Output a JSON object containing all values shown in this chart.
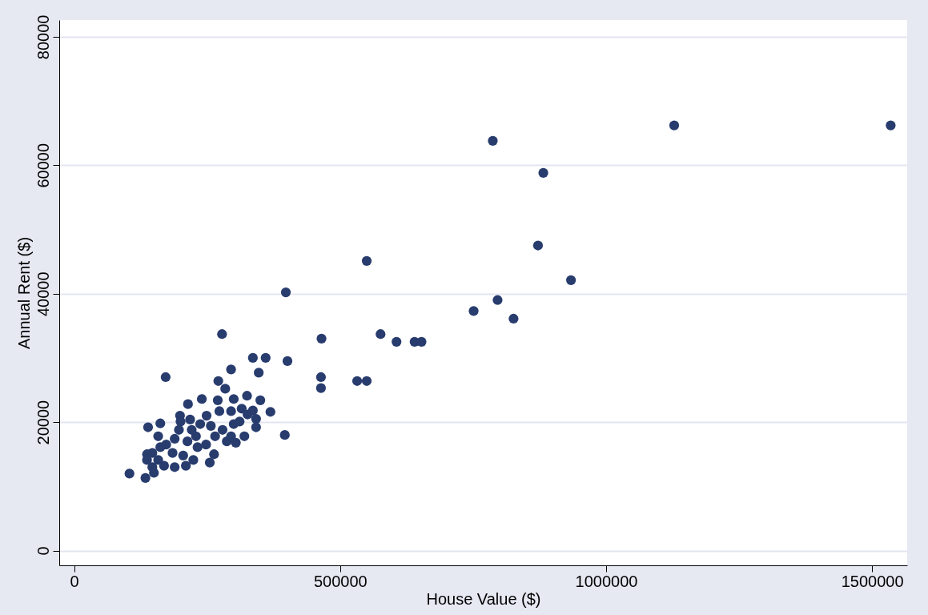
{
  "chart_data": {
    "type": "scatter",
    "xlabel": "House Value ($)",
    "ylabel": "Annual Rent ($)",
    "xlim": [
      -28000,
      1566000
    ],
    "ylim": [
      -2300,
      82600
    ],
    "xticks": [
      0,
      500000,
      1000000,
      1500000
    ],
    "yticks": [
      0,
      20000,
      40000,
      60000,
      80000
    ],
    "grid": "y",
    "marker": "circle",
    "series": [
      {
        "color": "#283c6e",
        "x": [
          104000,
          134000,
          150000,
          172000,
          278000,
          398000,
          401000,
          396000,
          336000,
          360000,
          347000,
          295000,
          271000,
          284000,
          369000,
          465000,
          464000,
          464000,
          532000,
          550000,
          550000,
          576000,
          606000,
          640000,
          653000,
          751000,
          787000,
          796000,
          826000,
          872000,
          882000,
          934000,
          1128000,
          1535000,
          214000,
          240000,
          270000,
          300000,
          325000,
          350000,
          199000,
          162000,
          139000,
          218000,
          249000,
          273000,
          295000,
          315000,
          336000,
          342000,
          342000,
          320000,
          304000,
          287000,
          265000,
          257000,
          237000,
          229000,
          232000,
          213000,
          197000,
          189000,
          173000,
          158000,
          162000,
          147000,
          137000,
          137000,
          158000,
          185000,
          205000,
          224000,
          263000,
          255000,
          210000,
          189000,
          169000,
          147000,
          248000,
          279000,
          300000,
          311000,
          326000,
          295000,
          200000,
          221000
        ],
        "values": [
          12000,
          11300,
          12100,
          27000,
          33700,
          40200,
          29500,
          18000,
          30000,
          30000,
          27700,
          28200,
          26400,
          25200,
          21600,
          33000,
          27000,
          25300,
          26400,
          26400,
          45100,
          33700,
          32500,
          32500,
          32500,
          37300,
          63800,
          39000,
          36100,
          47500,
          58800,
          42100,
          66200,
          66200,
          22800,
          23600,
          23400,
          23600,
          24100,
          23400,
          21000,
          19800,
          19200,
          20400,
          21000,
          21700,
          21700,
          22100,
          21800,
          20500,
          19200,
          17800,
          16800,
          17000,
          17800,
          19400,
          19700,
          17800,
          16100,
          17000,
          18800,
          17400,
          16500,
          17800,
          16100,
          15200,
          15000,
          14100,
          14100,
          15200,
          14800,
          14100,
          15000,
          13700,
          13200,
          13000,
          13200,
          13000,
          16500,
          18800,
          19700,
          20100,
          21200,
          17800,
          20100,
          18800
        ]
      }
    ]
  }
}
